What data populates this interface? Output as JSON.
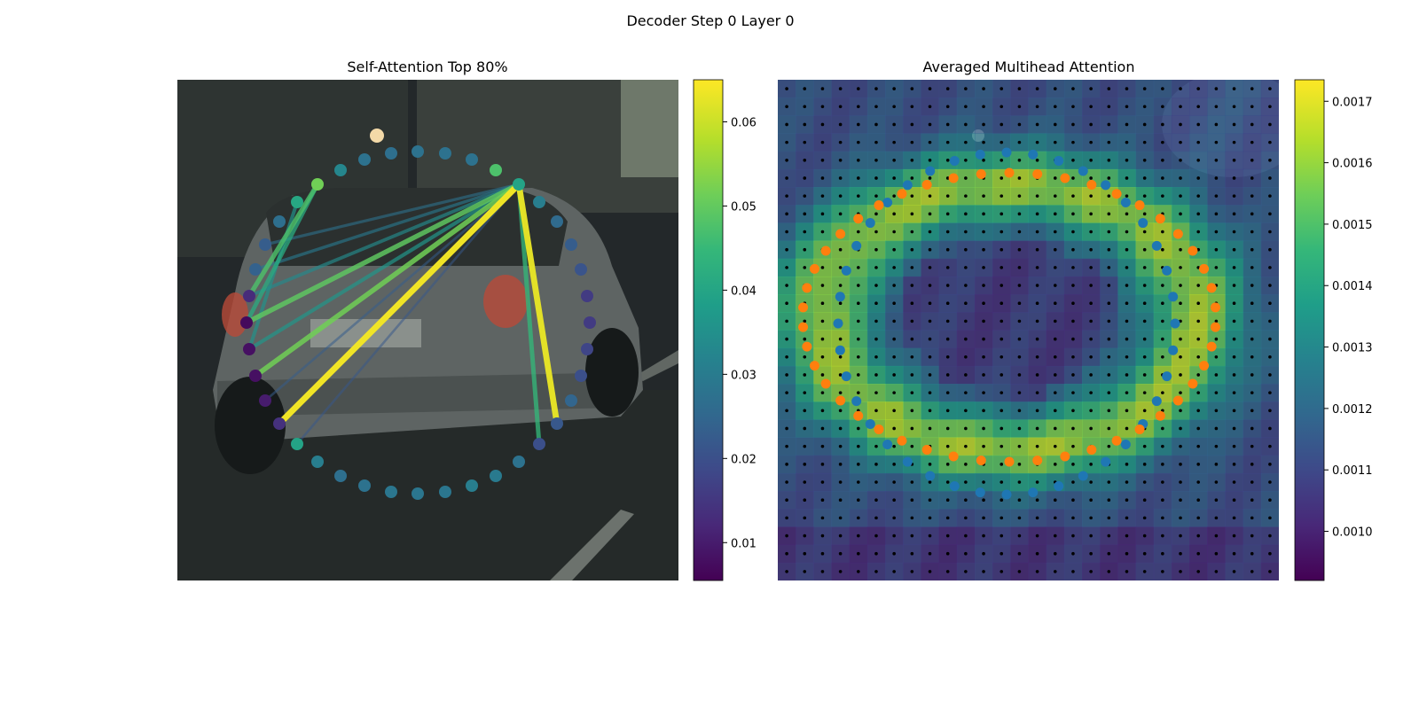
{
  "figure": {
    "title": "Decoder Step 0 Layer 0"
  },
  "chart_data": [
    {
      "type": "scatter",
      "title": "Self-Attention Top 80%",
      "background": "dark street photo with a silver hatchback car seen from behind",
      "colormap": "viridis",
      "colorbar": {
        "min": 0.0055,
        "max": 0.065,
        "ticks": [
          0.01,
          0.02,
          0.03,
          0.04,
          0.05,
          0.06
        ]
      },
      "polygon_points": [
        {
          "x": 471,
          "y": 171,
          "v": 0.028
        },
        {
          "x": 502,
          "y": 173,
          "v": 0.028
        },
        {
          "x": 532,
          "y": 180,
          "v": 0.028
        },
        {
          "x": 559,
          "y": 192,
          "v": 0.048
        },
        {
          "x": 585,
          "y": 208,
          "v": 0.04
        },
        {
          "x": 608,
          "y": 228,
          "v": 0.031
        },
        {
          "x": 628,
          "y": 250,
          "v": 0.026
        },
        {
          "x": 644,
          "y": 276,
          "v": 0.023
        },
        {
          "x": 655,
          "y": 304,
          "v": 0.021
        },
        {
          "x": 662,
          "y": 334,
          "v": 0.016
        },
        {
          "x": 665,
          "y": 364,
          "v": 0.016
        },
        {
          "x": 662,
          "y": 394,
          "v": 0.018
        },
        {
          "x": 655,
          "y": 424,
          "v": 0.02
        },
        {
          "x": 644,
          "y": 452,
          "v": 0.025
        },
        {
          "x": 628,
          "y": 478,
          "v": 0.022
        },
        {
          "x": 608,
          "y": 501,
          "v": 0.02
        },
        {
          "x": 585,
          "y": 521,
          "v": 0.028
        },
        {
          "x": 559,
          "y": 537,
          "v": 0.03
        },
        {
          "x": 532,
          "y": 548,
          "v": 0.031
        },
        {
          "x": 502,
          "y": 555,
          "v": 0.029
        },
        {
          "x": 471,
          "y": 557,
          "v": 0.029
        },
        {
          "x": 441,
          "y": 555,
          "v": 0.029
        },
        {
          "x": 411,
          "y": 548,
          "v": 0.028
        },
        {
          "x": 384,
          "y": 537,
          "v": 0.027
        },
        {
          "x": 358,
          "y": 521,
          "v": 0.031
        },
        {
          "x": 335,
          "y": 501,
          "v": 0.04
        },
        {
          "x": 315,
          "y": 478,
          "v": 0.014
        },
        {
          "x": 299,
          "y": 452,
          "v": 0.01
        },
        {
          "x": 288,
          "y": 424,
          "v": 0.008
        },
        {
          "x": 281,
          "y": 394,
          "v": 0.008
        },
        {
          "x": 278,
          "y": 364,
          "v": 0.007
        },
        {
          "x": 281,
          "y": 334,
          "v": 0.013
        },
        {
          "x": 288,
          "y": 304,
          "v": 0.024
        },
        {
          "x": 299,
          "y": 276,
          "v": 0.023
        },
        {
          "x": 315,
          "y": 250,
          "v": 0.027
        },
        {
          "x": 335,
          "y": 228,
          "v": 0.041
        },
        {
          "x": 358,
          "y": 208,
          "v": 0.052
        },
        {
          "x": 384,
          "y": 192,
          "v": 0.033
        },
        {
          "x": 411,
          "y": 180,
          "v": 0.028
        },
        {
          "x": 441,
          "y": 173,
          "v": 0.027
        }
      ],
      "attention_links": [
        {
          "from": 4,
          "to": 26,
          "v": 0.064
        },
        {
          "from": 4,
          "to": 14,
          "v": 0.063
        },
        {
          "from": 4,
          "to": 15,
          "v": 0.045
        },
        {
          "from": 4,
          "to": 28,
          "v": 0.052
        },
        {
          "from": 4,
          "to": 30,
          "v": 0.05
        },
        {
          "from": 4,
          "to": 29,
          "v": 0.037
        },
        {
          "from": 4,
          "to": 31,
          "v": 0.034
        },
        {
          "from": 4,
          "to": 32,
          "v": 0.03
        },
        {
          "from": 4,
          "to": 33,
          "v": 0.028
        },
        {
          "from": 4,
          "to": 27,
          "v": 0.023
        },
        {
          "from": 4,
          "to": 25,
          "v": 0.022
        },
        {
          "from": 36,
          "to": 31,
          "v": 0.048
        },
        {
          "from": 36,
          "to": 30,
          "v": 0.042
        },
        {
          "from": 35,
          "to": 29,
          "v": 0.036
        }
      ]
    },
    {
      "type": "heatmap",
      "title": "Averaged Multihead Attention",
      "background": "same street photo overlaid with an attention heatmap",
      "colormap": "viridis",
      "colorbar": {
        "min": 0.00092,
        "max": 0.001735,
        "ticks": [
          0.001,
          0.0011,
          0.0012,
          0.0013,
          0.0014,
          0.0015,
          0.0016,
          0.0017
        ]
      },
      "tick_labels": [
        "0.0010",
        "0.0011",
        "0.0012",
        "0.0013",
        "0.0014",
        "0.0015",
        "0.0016",
        "0.0017"
      ],
      "grid": {
        "cols": 28,
        "rows": 28
      },
      "ring_centers": [
        {
          "cx": 1135,
          "cy": 365,
          "rx": 190,
          "ry": 193,
          "color": "#1f77b4",
          "count": 40
        },
        {
          "cx": 1138,
          "cy": 358,
          "rx": 233,
          "ry": 163,
          "color": "#ff7f0e",
          "count": 46
        }
      ]
    }
  ]
}
